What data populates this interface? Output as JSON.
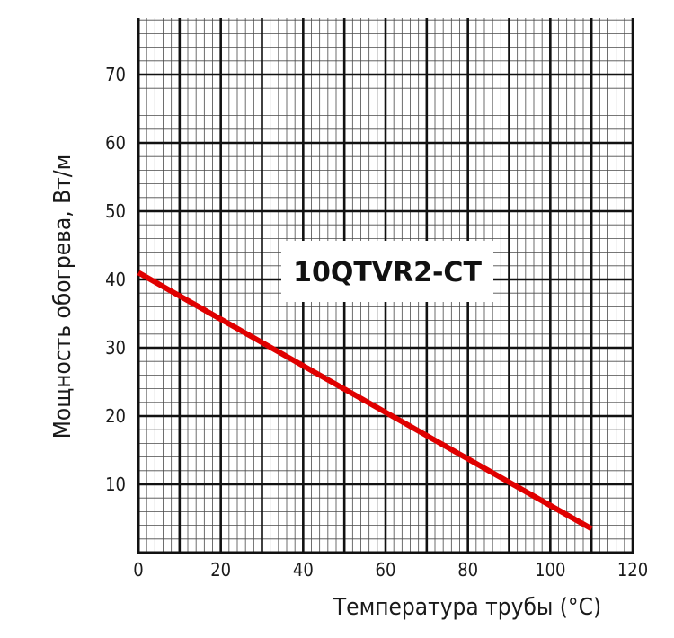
{
  "chart_data": {
    "type": "line",
    "xlabel": "Температура трубы (°C)",
    "ylabel": "Мощность обогрева, Вт/м",
    "xlim": [
      0,
      120
    ],
    "ylim": [
      0,
      78
    ],
    "x_ticks": [
      0,
      20,
      40,
      60,
      80,
      100,
      120
    ],
    "y_ticks": [
      10,
      20,
      30,
      40,
      50,
      60,
      70
    ],
    "grid": true,
    "series": [
      {
        "name": "10QTVR2-CT",
        "color": "#e00000",
        "x": [
          0,
          110
        ],
        "y": [
          41,
          3.5
        ]
      }
    ]
  }
}
